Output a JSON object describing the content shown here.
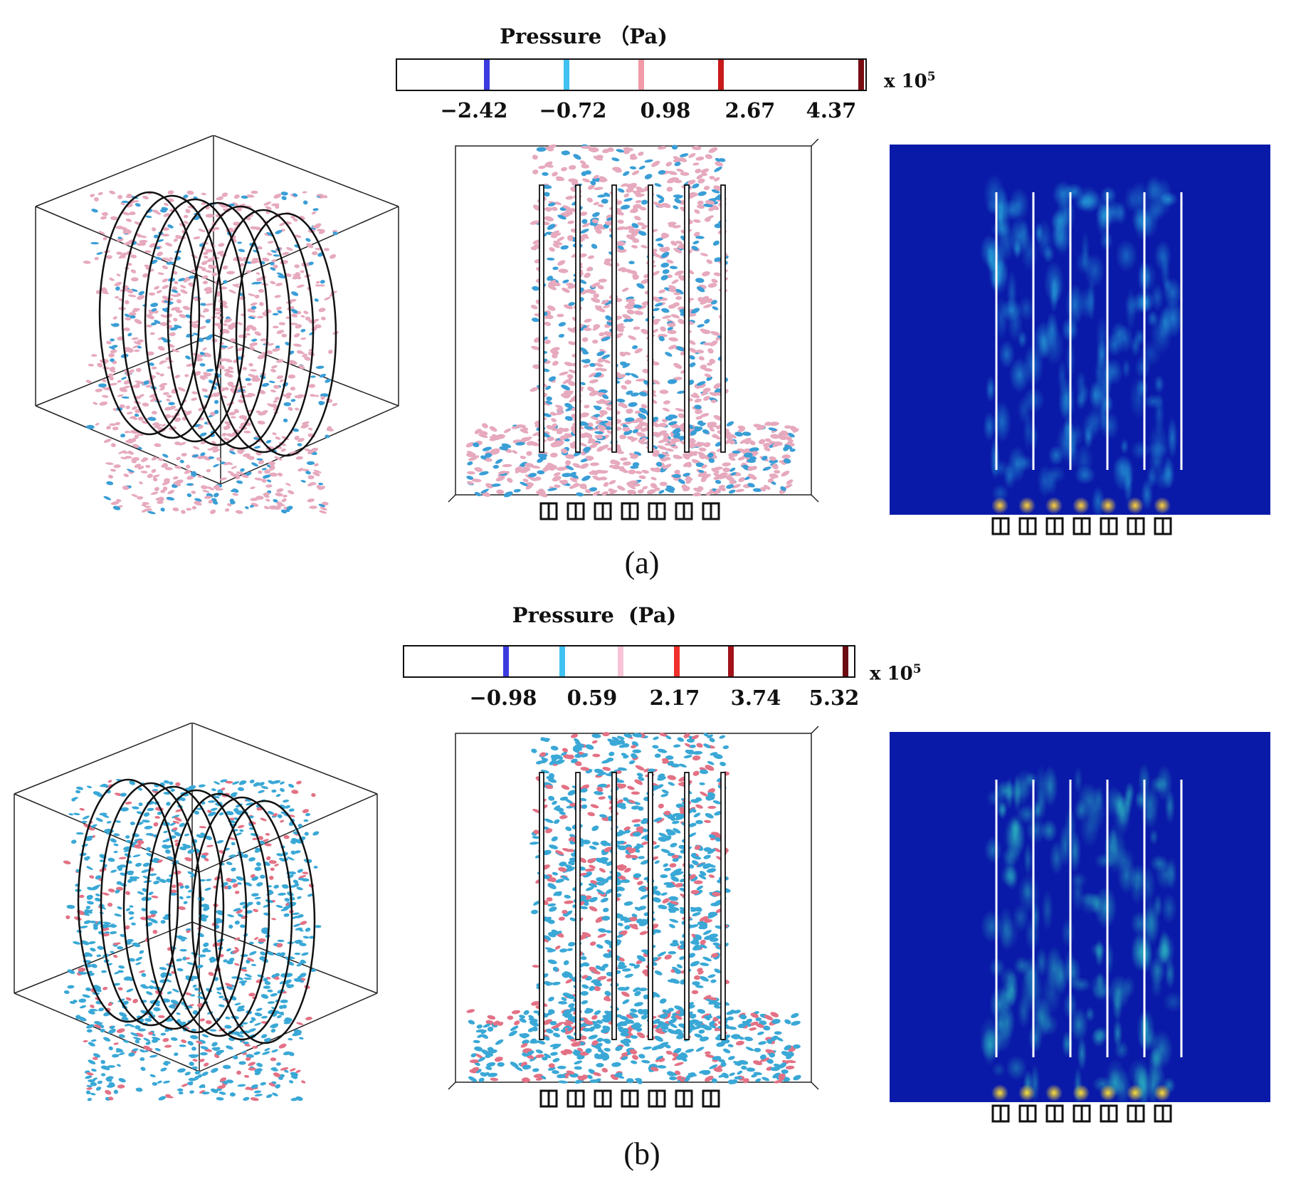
{
  "figure": {
    "panels": [
      {
        "caption": "(a)",
        "colorbar": {
          "title": "Pressure （Pa)",
          "unit_prefix": "x 10",
          "unit_exponent": "5",
          "ticks": [
            "−2.42",
            "−0.72",
            "0.98",
            "2.67",
            "4.37"
          ],
          "stripe_colors": [
            "#3b3be0",
            "#3fc1f2",
            "#f19aa8",
            "#c81a1a",
            "#7a0e14"
          ]
        },
        "particle_colors": {
          "primary": "#e6a9bd",
          "secondary": "#3a9ed6"
        },
        "heatmap_colors": {
          "base": "#0a1aa8",
          "hot": "#2fd0e8",
          "peak": "#ffd23a"
        }
      },
      {
        "caption": "(b)",
        "colorbar": {
          "title": "Pressure  (Pa)",
          "unit_prefix": "x 10",
          "unit_exponent": "5",
          "ticks": [
            "−0.98",
            "0.59",
            "2.17",
            "3.74",
            "5.32"
          ],
          "stripe_colors": [
            "#3b3be0",
            "#3fc1f2",
            "#f7c3d6",
            "#f0302c",
            "#a3121a",
            "#6b0b12"
          ]
        },
        "particle_colors": {
          "primary": "#3aa8d6",
          "secondary": "#e37185"
        },
        "heatmap_colors": {
          "base": "#0a1aa8",
          "hot": "#33e0c8",
          "peak": "#ffe033"
        }
      }
    ]
  }
}
